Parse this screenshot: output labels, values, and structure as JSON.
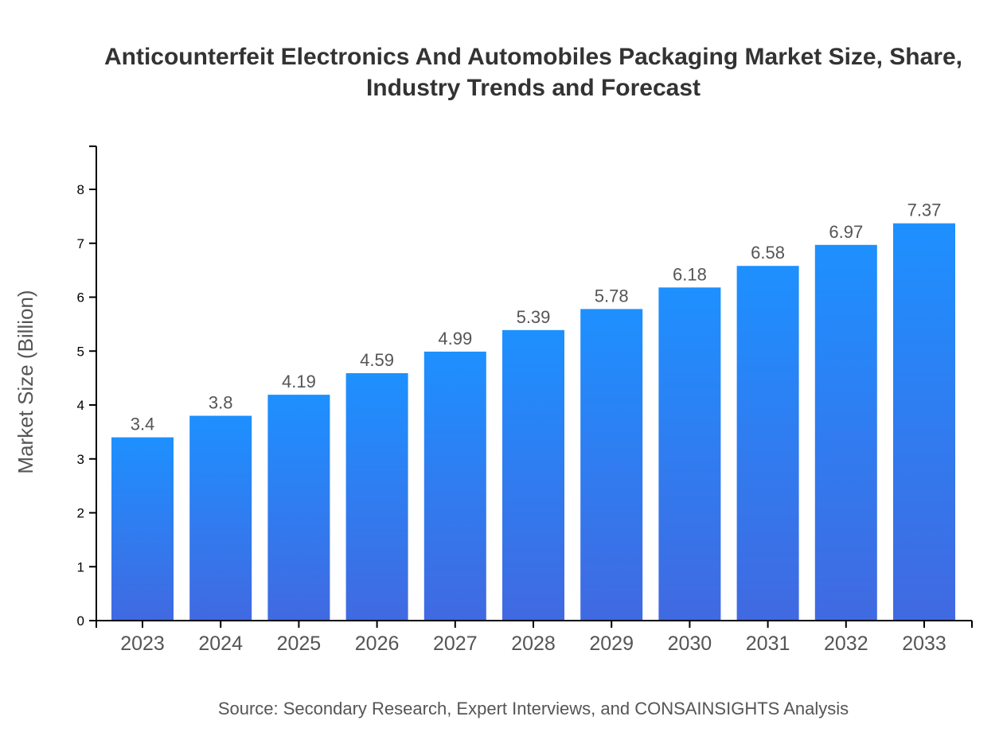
{
  "chart_data": {
    "type": "bar",
    "title": "Anticounterfeit Electronics And Automobiles Packaging Market Size, Share, Industry Trends and Forecast",
    "xlabel": "",
    "ylabel": "Market Size (Billion)",
    "categories": [
      "2023",
      "2024",
      "2025",
      "2026",
      "2027",
      "2028",
      "2029",
      "2030",
      "2031",
      "2032",
      "2033"
    ],
    "values": [
      3.4,
      3.8,
      4.19,
      4.59,
      4.99,
      5.39,
      5.78,
      6.18,
      6.58,
      6.97,
      7.37
    ],
    "ylim": [
      0,
      8.8
    ],
    "yticks": [
      0,
      1,
      2,
      3,
      4,
      5,
      6,
      7,
      8
    ],
    "grid": false,
    "colors": {
      "bar_top": "#1e90ff",
      "bar_bottom": "#4169e1"
    },
    "source": "Source: Secondary Research, Expert Interviews, and CONSAINSIGHTS Analysis"
  }
}
